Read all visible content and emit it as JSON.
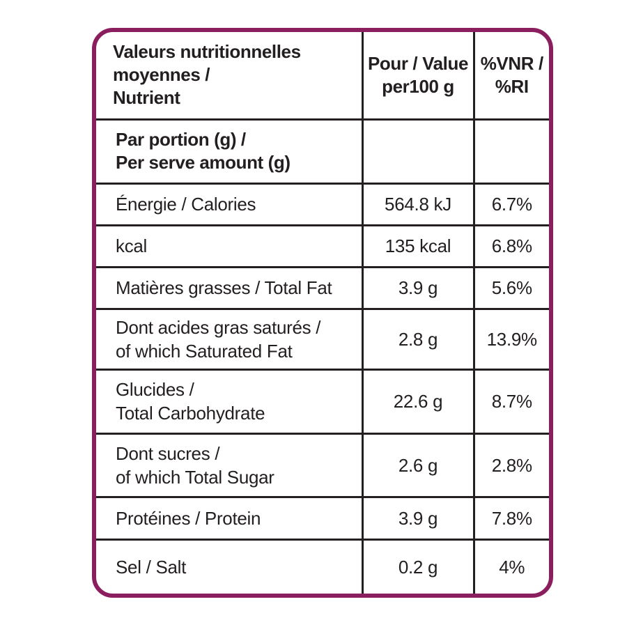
{
  "header": {
    "nutrient_lines": [
      "Valeurs nutritionnelles",
      "moyennes /",
      "Nutrient"
    ],
    "per100_lines": [
      "Pour / Value",
      "per100 g"
    ],
    "ri_lines": [
      "%VNR /",
      "%RI"
    ]
  },
  "portion": {
    "label_lines": [
      "Par portion (g) /",
      "Per serve amount (g)"
    ],
    "value": "",
    "ri": ""
  },
  "rows": [
    {
      "label_lines": [
        "Énergie / Calories"
      ],
      "value": "564.8 kJ",
      "ri": "6.7%"
    },
    {
      "label_lines": [
        "kcal"
      ],
      "value": "135 kcal",
      "ri": "6.8%"
    },
    {
      "label_lines": [
        "Matières grasses / Total Fat"
      ],
      "value": "3.9 g",
      "ri": "5.6%"
    },
    {
      "label_lines": [
        "Dont acides gras saturés /",
        "of which Saturated Fat"
      ],
      "value": "2.8 g",
      "ri": "13.9%"
    },
    {
      "label_lines": [
        "Glucides /",
        "Total Carbohydrate"
      ],
      "value": "22.6 g",
      "ri": "8.7%"
    },
    {
      "label_lines": [
        "Dont sucres /",
        "of which Total Sugar"
      ],
      "value": "2.6 g",
      "ri": "2.8%"
    },
    {
      "label_lines": [
        "Protéines / Protein"
      ],
      "value": "3.9 g",
      "ri": "7.8%"
    },
    {
      "label_lines": [
        "Sel / Salt"
      ],
      "value": "0.2 g",
      "ri": "4%"
    }
  ],
  "colors": {
    "frame": "#8a1e5e",
    "grid": "#231f20",
    "text": "#231f20"
  }
}
